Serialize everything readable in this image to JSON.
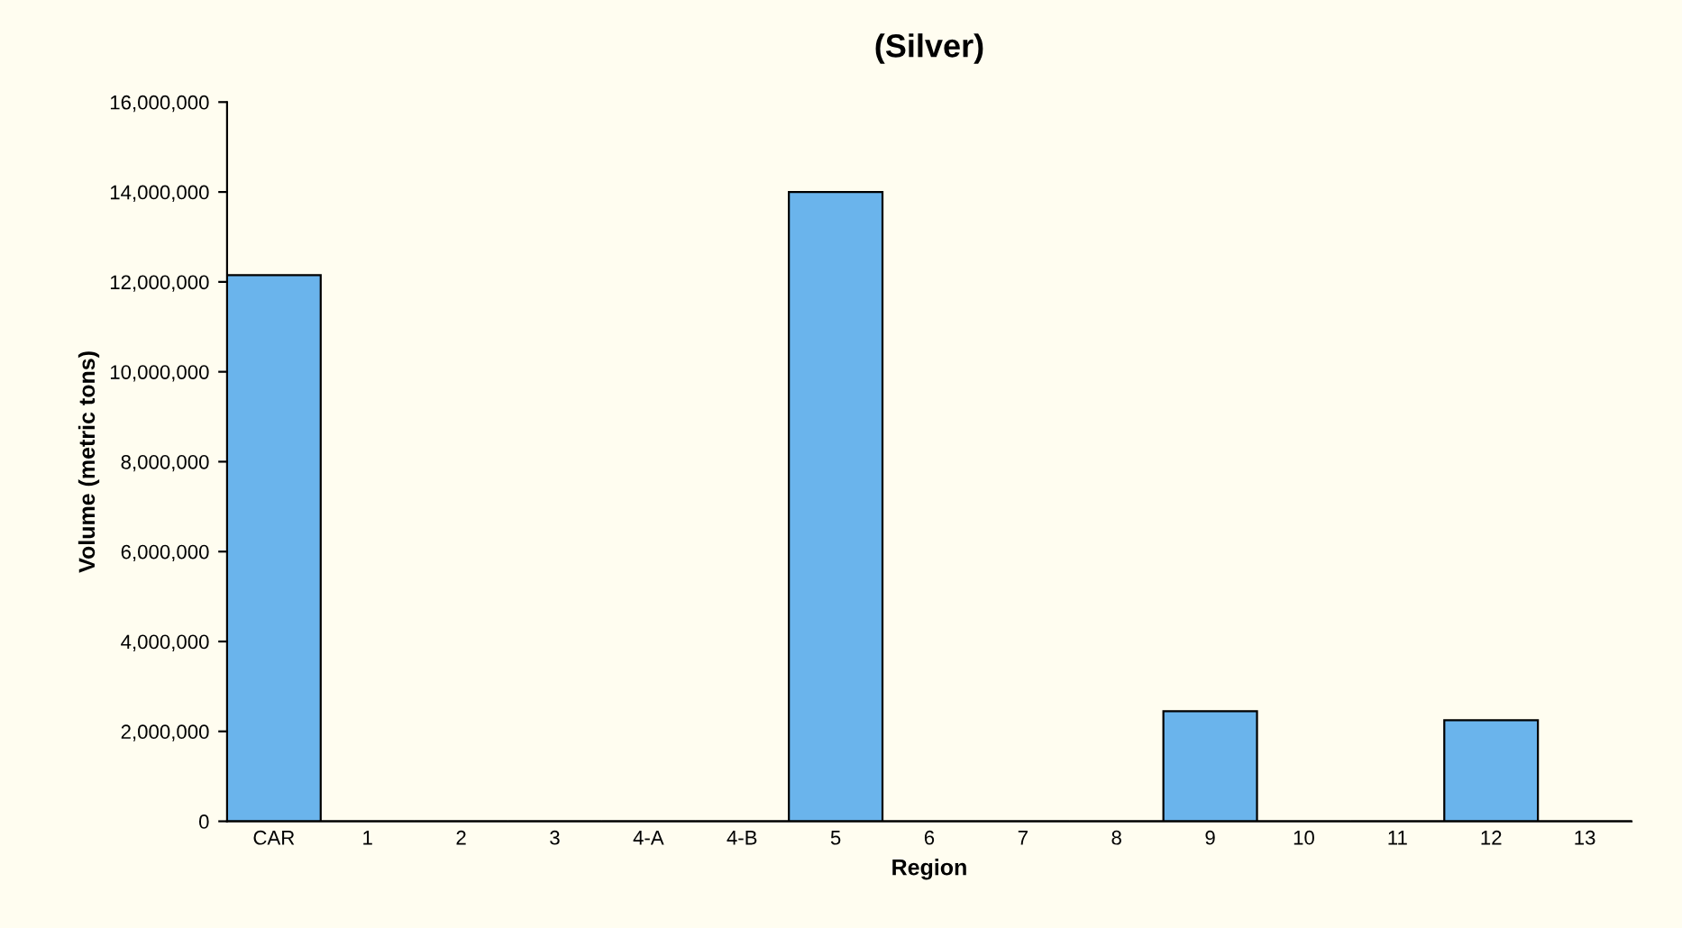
{
  "chart_data": {
    "type": "bar",
    "title": "(Silver)",
    "xlabel": "Region",
    "ylabel": "Volume (metric tons)",
    "categories": [
      "CAR",
      "1",
      "2",
      "3",
      "4-A",
      "4-B",
      "5",
      "6",
      "7",
      "8",
      "9",
      "10",
      "11",
      "12",
      "13"
    ],
    "values": [
      12150000,
      0,
      0,
      0,
      0,
      0,
      14000000,
      0,
      0,
      0,
      2450000,
      0,
      0,
      2250000,
      0
    ],
    "color": "#6ab4ec",
    "ylim": [
      0,
      16000000
    ],
    "yticks": [
      {
        "value": 0,
        "label": "0"
      },
      {
        "value": 2000000,
        "label": "2,000,000"
      },
      {
        "value": 4000000,
        "label": "4,000,000"
      },
      {
        "value": 6000000,
        "label": "6,000,000"
      },
      {
        "value": 8000000,
        "label": "8,000,000"
      },
      {
        "value": 10000000,
        "label": "10,000,000"
      },
      {
        "value": 12000000,
        "label": "12,000,000"
      },
      {
        "value": 14000000,
        "label": "14,000,000"
      },
      {
        "value": 16000000,
        "label": "16,000,000"
      }
    ],
    "grid": false
  }
}
